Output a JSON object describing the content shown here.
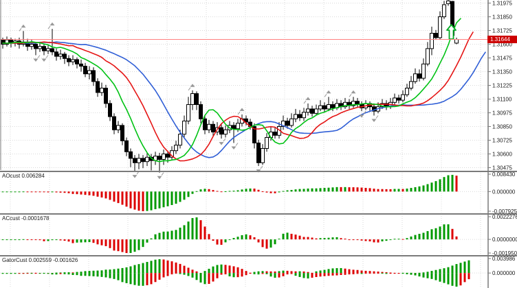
{
  "window": {
    "title": "forex-candlestick-chart"
  },
  "colors": {
    "background": "#ffffff",
    "grid": "#d9d9d9",
    "separator": "#7a7a7a",
    "axis_line": "#7a7a7a",
    "candle_bear": "#000000",
    "candle_bull": "#ffffff",
    "candle_outline": "#000000",
    "alligator_jaw_blue": "#2f5ed6",
    "alligator_teeth_red": "#e51515",
    "alligator_lips_green": "#00c214",
    "hist_up_green": "#009a00",
    "hist_down_red": "#dd0000",
    "fractal_gray": "#999999",
    "price_line": "#ff8080",
    "price_tag_bg": "#cc0000",
    "price_tag_text": "#ffffff",
    "buy_arrow_green": "#00aa22"
  },
  "price_axis": {
    "labels": [
      "1.31975",
      "1.31850",
      "1.31725",
      "1.31600",
      "1.31475",
      "1.31350",
      "1.31225",
      "1.31100",
      "1.30975",
      "1.30850",
      "1.30725",
      "1.30600",
      "1.30475"
    ],
    "current_price_label": "1.31644"
  },
  "chart_data": {
    "type": "candlestick",
    "title": "",
    "price_line_value": 1.31644,
    "ylim": [
      1.30475,
      1.31975
    ],
    "price_step_per_gridline": 0.00125,
    "overlays": {
      "alligator": {
        "jaw": {
          "color_key": "alligator_jaw_blue",
          "period": 13,
          "shift": 8
        },
        "teeth": {
          "color_key": "alligator_teeth_red",
          "period": 8,
          "shift": 5
        },
        "lips": {
          "color_key": "alligator_lips_green",
          "period": 5,
          "shift": 2
        }
      },
      "fractals": true,
      "buy_arrow_icon": {
        "name": "up-arrow-icon",
        "x": 650,
        "y": 36
      }
    },
    "candles": [
      [
        1.3164,
        1.3166,
        1.3156,
        1.316
      ],
      [
        1.316,
        1.3167,
        1.3158,
        1.3164
      ],
      [
        1.3164,
        1.3166,
        1.3157,
        1.3161
      ],
      [
        1.3161,
        1.3165,
        1.3158,
        1.3163
      ],
      [
        1.3163,
        1.3166,
        1.3156,
        1.316
      ],
      [
        1.316,
        1.3172,
        1.3158,
        1.3162
      ],
      [
        1.3162,
        1.3165,
        1.3154,
        1.3158
      ],
      [
        1.3158,
        1.3164,
        1.3155,
        1.316
      ],
      [
        1.316,
        1.3162,
        1.315,
        1.3156
      ],
      [
        1.3156,
        1.3162,
        1.3153,
        1.3158
      ],
      [
        1.3158,
        1.316,
        1.315,
        1.3154
      ],
      [
        1.3154,
        1.316,
        1.3151,
        1.3156
      ],
      [
        1.3156,
        1.3174,
        1.315,
        1.3153
      ],
      [
        1.3153,
        1.3156,
        1.3145,
        1.3149
      ],
      [
        1.3149,
        1.3155,
        1.3146,
        1.3151
      ],
      [
        1.3151,
        1.3153,
        1.3142,
        1.3147
      ],
      [
        1.3147,
        1.315,
        1.314,
        1.3144
      ],
      [
        1.3144,
        1.315,
        1.3141,
        1.3146
      ],
      [
        1.3146,
        1.3148,
        1.3138,
        1.3142
      ],
      [
        1.3142,
        1.3146,
        1.3135,
        1.314
      ],
      [
        1.314,
        1.3143,
        1.313,
        1.3133
      ],
      [
        1.3133,
        1.314,
        1.3128,
        1.3136
      ],
      [
        1.3136,
        1.3139,
        1.3122,
        1.3126
      ],
      [
        1.3126,
        1.3129,
        1.3112,
        1.3116
      ],
      [
        1.3116,
        1.3125,
        1.3113,
        1.312
      ],
      [
        1.312,
        1.3123,
        1.3102,
        1.3106
      ],
      [
        1.3106,
        1.3109,
        1.309,
        1.3094
      ],
      [
        1.3094,
        1.3097,
        1.3078,
        1.3082
      ],
      [
        1.3082,
        1.309,
        1.3079,
        1.3086
      ],
      [
        1.3086,
        1.3088,
        1.3068,
        1.3072
      ],
      [
        1.3072,
        1.3075,
        1.3058,
        1.3062
      ],
      [
        1.3062,
        1.3065,
        1.3048,
        1.3056
      ],
      [
        1.3056,
        1.3059,
        1.3044,
        1.3052
      ],
      [
        1.3052,
        1.306,
        1.3046,
        1.3056
      ],
      [
        1.3056,
        1.3059,
        1.3047,
        1.3053
      ],
      [
        1.3053,
        1.3061,
        1.3049,
        1.3057
      ],
      [
        1.3057,
        1.306,
        1.3045,
        1.3054
      ],
      [
        1.3054,
        1.3062,
        1.305,
        1.3058
      ],
      [
        1.3058,
        1.3061,
        1.3043,
        1.3055
      ],
      [
        1.3055,
        1.3064,
        1.305,
        1.306
      ],
      [
        1.306,
        1.3063,
        1.3052,
        1.3057
      ],
      [
        1.3057,
        1.3067,
        1.3054,
        1.3063
      ],
      [
        1.3063,
        1.3072,
        1.306,
        1.3068
      ],
      [
        1.3068,
        1.3082,
        1.3065,
        1.3078
      ],
      [
        1.3078,
        1.3095,
        1.3075,
        1.309
      ],
      [
        1.309,
        1.3112,
        1.3087,
        1.3105
      ],
      [
        1.3105,
        1.3118,
        1.31,
        1.3115
      ],
      [
        1.3115,
        1.3117,
        1.31,
        1.3105
      ],
      [
        1.3105,
        1.3108,
        1.3088,
        1.3092
      ],
      [
        1.3092,
        1.3095,
        1.3078,
        1.3082
      ],
      [
        1.3082,
        1.3091,
        1.3079,
        1.3087
      ],
      [
        1.3087,
        1.309,
        1.3076,
        1.308
      ],
      [
        1.308,
        1.3089,
        1.3077,
        1.3084
      ],
      [
        1.3084,
        1.3087,
        1.3074,
        1.3078
      ],
      [
        1.3078,
        1.3086,
        1.3075,
        1.3082
      ],
      [
        1.3082,
        1.309,
        1.3079,
        1.3086
      ],
      [
        1.3086,
        1.3089,
        1.307,
        1.3083
      ],
      [
        1.3083,
        1.3092,
        1.308,
        1.3088
      ],
      [
        1.3088,
        1.3096,
        1.3085,
        1.3092
      ],
      [
        1.3092,
        1.3095,
        1.3086,
        1.3089
      ],
      [
        1.3089,
        1.3092,
        1.3082,
        1.3085
      ],
      [
        1.3085,
        1.3088,
        1.3065,
        1.307
      ],
      [
        1.307,
        1.3073,
        1.3049,
        1.3052
      ],
      [
        1.3052,
        1.3069,
        1.305,
        1.3065
      ],
      [
        1.3065,
        1.3079,
        1.3062,
        1.3075
      ],
      [
        1.3075,
        1.3085,
        1.3072,
        1.308
      ],
      [
        1.308,
        1.3084,
        1.3074,
        1.3077
      ],
      [
        1.3077,
        1.3089,
        1.3074,
        1.3085
      ],
      [
        1.3085,
        1.3095,
        1.3082,
        1.309
      ],
      [
        1.309,
        1.3093,
        1.3083,
        1.3086
      ],
      [
        1.3086,
        1.3097,
        1.3084,
        1.3092
      ],
      [
        1.3092,
        1.3101,
        1.3089,
        1.3096
      ],
      [
        1.3096,
        1.31,
        1.309,
        1.3093
      ],
      [
        1.3093,
        1.3102,
        1.309,
        1.3098
      ],
      [
        1.3098,
        1.3106,
        1.3095,
        1.3101
      ],
      [
        1.3101,
        1.3104,
        1.3094,
        1.3097
      ],
      [
        1.3097,
        1.3105,
        1.3095,
        1.3101
      ],
      [
        1.3101,
        1.3109,
        1.3099,
        1.3104
      ],
      [
        1.3104,
        1.3107,
        1.3098,
        1.3101
      ],
      [
        1.3101,
        1.3112,
        1.3099,
        1.3105
      ],
      [
        1.3105,
        1.3108,
        1.3099,
        1.3102
      ],
      [
        1.3102,
        1.311,
        1.31,
        1.3106
      ],
      [
        1.3106,
        1.3109,
        1.31,
        1.3103
      ],
      [
        1.3103,
        1.3111,
        1.3101,
        1.3107
      ],
      [
        1.3107,
        1.311,
        1.3101,
        1.3104
      ],
      [
        1.3104,
        1.3112,
        1.3102,
        1.3108
      ],
      [
        1.3108,
        1.3111,
        1.3102,
        1.3105
      ],
      [
        1.3105,
        1.3108,
        1.3099,
        1.3102
      ],
      [
        1.3102,
        1.3109,
        1.31,
        1.3106
      ],
      [
        1.3106,
        1.3108,
        1.3099,
        1.3103
      ],
      [
        1.3103,
        1.3106,
        1.3095,
        1.3099
      ],
      [
        1.3099,
        1.3107,
        1.3097,
        1.3103
      ],
      [
        1.3103,
        1.311,
        1.3101,
        1.3106
      ],
      [
        1.3106,
        1.3109,
        1.31,
        1.3103
      ],
      [
        1.3103,
        1.3111,
        1.3101,
        1.3107
      ],
      [
        1.3107,
        1.3115,
        1.3105,
        1.3111
      ],
      [
        1.3111,
        1.3114,
        1.3106,
        1.3109
      ],
      [
        1.3109,
        1.3118,
        1.3107,
        1.3114
      ],
      [
        1.3114,
        1.3124,
        1.3112,
        1.312
      ],
      [
        1.312,
        1.3131,
        1.3118,
        1.3126
      ],
      [
        1.3126,
        1.3138,
        1.3124,
        1.3133
      ],
      [
        1.3133,
        1.3137,
        1.3126,
        1.3129
      ],
      [
        1.3129,
        1.3147,
        1.3127,
        1.3142
      ],
      [
        1.3142,
        1.3162,
        1.314,
        1.3156
      ],
      [
        1.3156,
        1.3176,
        1.315,
        1.317
      ],
      [
        1.317,
        1.3173,
        1.3164,
        1.3166
      ],
      [
        1.3166,
        1.319,
        1.3164,
        1.3185
      ],
      [
        1.3185,
        1.31995,
        1.3183,
        1.3196
      ],
      [
        1.3197,
        1.32005,
        1.3195,
        1.31995
      ],
      [
        1.3199,
        1.31995,
        1.3165,
        1.3168
      ],
      [
        1.3161,
        1.3166,
        1.316,
        1.31644
      ]
    ],
    "panels": [
      {
        "id": "ao",
        "label": "AOcust 0.006284",
        "indicator": "awesome_oscillator",
        "axis_labels": {
          "top": "0.008430",
          "zero": "0.000000",
          "bottom": "-0.007925"
        }
      },
      {
        "id": "ac",
        "label": "ACcust -0.0001678",
        "indicator": "accelerator_oscillator",
        "axis_labels": {
          "top": "0.0022276",
          "zero": "0.0000000",
          "bottom": "-0.0019502"
        }
      },
      {
        "id": "gator",
        "label": "GatorCust 0.002559 -0.001626",
        "indicator": "gator_oscillator",
        "axis_labels": {
          "top": "0.003986",
          "zero": "0.000000"
        }
      }
    ]
  }
}
